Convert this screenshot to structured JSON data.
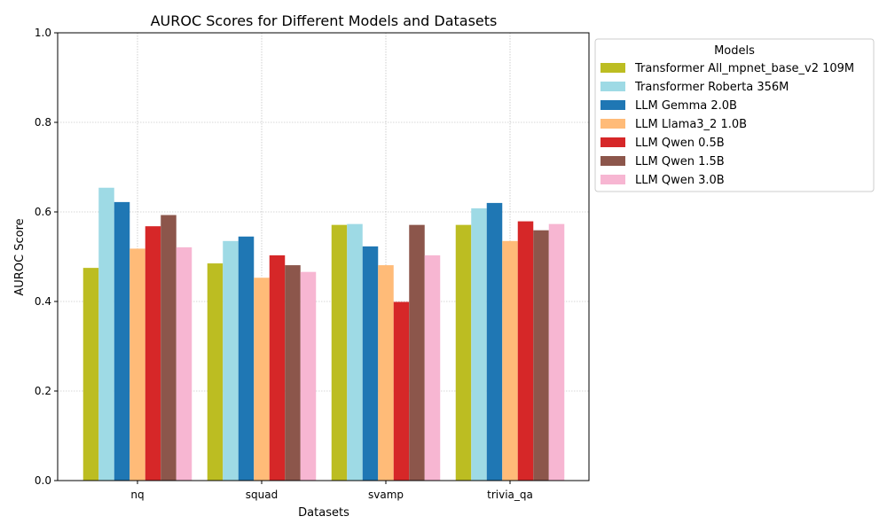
{
  "chart_data": {
    "type": "bar",
    "title": "AUROC Scores for Different Models and Datasets",
    "xlabel": "Datasets",
    "ylabel": "AUROC Score",
    "ylim": [
      0,
      1
    ],
    "yticks": [
      "0.0",
      "0.2",
      "0.4",
      "0.6",
      "0.8",
      "1.0"
    ],
    "ytick_values": [
      0,
      0.2,
      0.4,
      0.6,
      0.8,
      1.0
    ],
    "grid": true,
    "legend_title": "Models",
    "legend_placement": "outside-top-right",
    "categories": [
      "nq",
      "squad",
      "svamp",
      "trivia_qa"
    ],
    "series": [
      {
        "name": "Transformer All_mpnet_base_v2 109M",
        "color": "#bcbd22",
        "values": [
          0.475,
          0.485,
          0.571,
          0.571
        ]
      },
      {
        "name": "Transformer Roberta 356M",
        "color": "#9edae5",
        "values": [
          0.654,
          0.535,
          0.573,
          0.608
        ]
      },
      {
        "name": "LLM Gemma 2.0B",
        "color": "#1f77b4",
        "values": [
          0.622,
          0.545,
          0.523,
          0.62
        ]
      },
      {
        "name": "LLM Llama3_2 1.0B",
        "color": "#ffbb78",
        "values": [
          0.518,
          0.453,
          0.481,
          0.535
        ]
      },
      {
        "name": "LLM Qwen 0.5B",
        "color": "#d62728",
        "values": [
          0.568,
          0.503,
          0.399,
          0.579
        ]
      },
      {
        "name": "LLM Qwen 1.5B",
        "color": "#8c564b",
        "values": [
          0.593,
          0.481,
          0.571,
          0.559
        ]
      },
      {
        "name": "LLM Qwen 3.0B",
        "color": "#f7b6d2",
        "values": [
          0.521,
          0.466,
          0.503,
          0.573
        ]
      }
    ]
  }
}
